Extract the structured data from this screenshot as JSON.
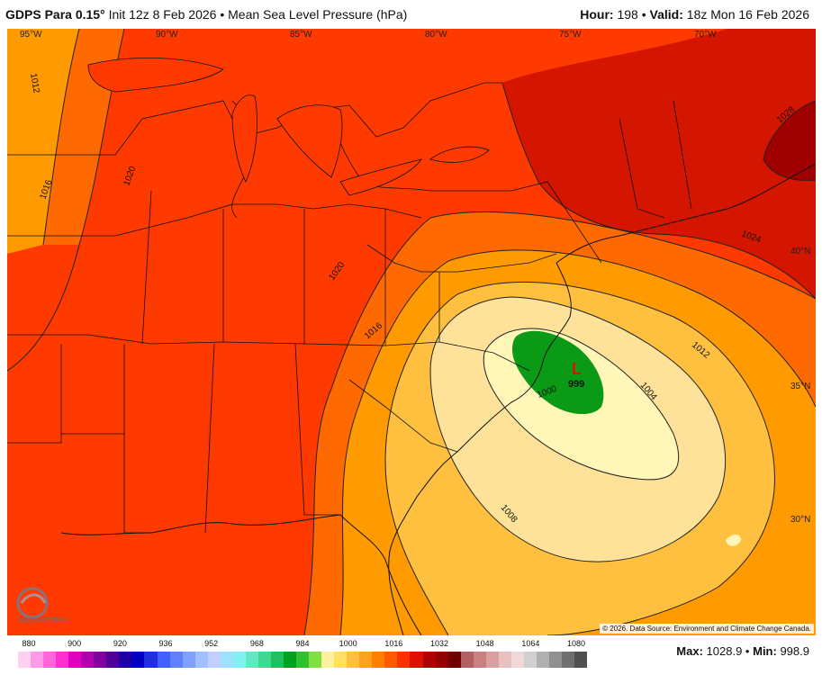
{
  "header": {
    "model": "GDPS Para 0.15°",
    "init": "Init 12z 8 Feb 2026",
    "separator": "•",
    "field": "Mean Sea Level Pressure (hPa)",
    "hour_label": "Hour:",
    "hour_value": "198",
    "valid_label": "Valid:",
    "valid_value": "18z Mon 16 Feb 2026"
  },
  "map": {
    "longitude_labels": [
      "95°W",
      "90°W",
      "85°W",
      "80°W",
      "75°W",
      "70°W"
    ],
    "latitude_labels": [
      "40°N",
      "35°N",
      "30°N"
    ],
    "contour_labels": [
      "1012",
      "1016",
      "1020",
      "1024",
      "1028",
      "1020",
      "1016",
      "1012",
      "1008",
      "1004",
      "1000"
    ],
    "low_center": {
      "symbol": "L",
      "value": "999"
    },
    "credit": "© 2026. Data Source: Environment and Climate Change Canada.",
    "logo_text": "WEATHERBELL",
    "colors": {
      "p1028": "#a00000",
      "p1024": "#d41500",
      "p1020": "#ff3a00",
      "p1016": "#ff6a00",
      "p1012": "#ff9a00",
      "p1008": "#ffc040",
      "p1004": "#ffe29a",
      "p1000": "#fff6b8",
      "p996": "#0a9a16"
    }
  },
  "colorbar": {
    "ticks": [
      "880",
      "900",
      "920",
      "936",
      "952",
      "968",
      "984",
      "1000",
      "1016",
      "1032",
      "1048",
      "1064",
      "1080"
    ],
    "colors": [
      "#ffd0f0",
      "#ff9ae6",
      "#ff66dc",
      "#ff30d0",
      "#e000c0",
      "#b000b0",
      "#8000a0",
      "#50009a",
      "#2000a0",
      "#0000c0",
      "#2030e0",
      "#4060ff",
      "#6080ff",
      "#80a0ff",
      "#a0c0ff",
      "#c0d0ff",
      "#a0e0ff",
      "#80f0f0",
      "#60e8c0",
      "#40d890",
      "#20c060",
      "#00a020",
      "#30c030",
      "#80e040",
      "#fff0a0",
      "#ffe060",
      "#ffc040",
      "#ffa020",
      "#ff8000",
      "#ff5a00",
      "#ff3000",
      "#e01000",
      "#b00000",
      "#900000",
      "#700000",
      "#b06060",
      "#c88080",
      "#d8a0a0",
      "#e8c0c0",
      "#f0d8d8",
      "#d0d0d0",
      "#b0b0b0",
      "#909090",
      "#707070",
      "#505050"
    ]
  },
  "stats": {
    "max_label": "Max:",
    "max_value": "1028.9",
    "min_label": "Min:",
    "min_value": "998.9",
    "separator": "•"
  }
}
